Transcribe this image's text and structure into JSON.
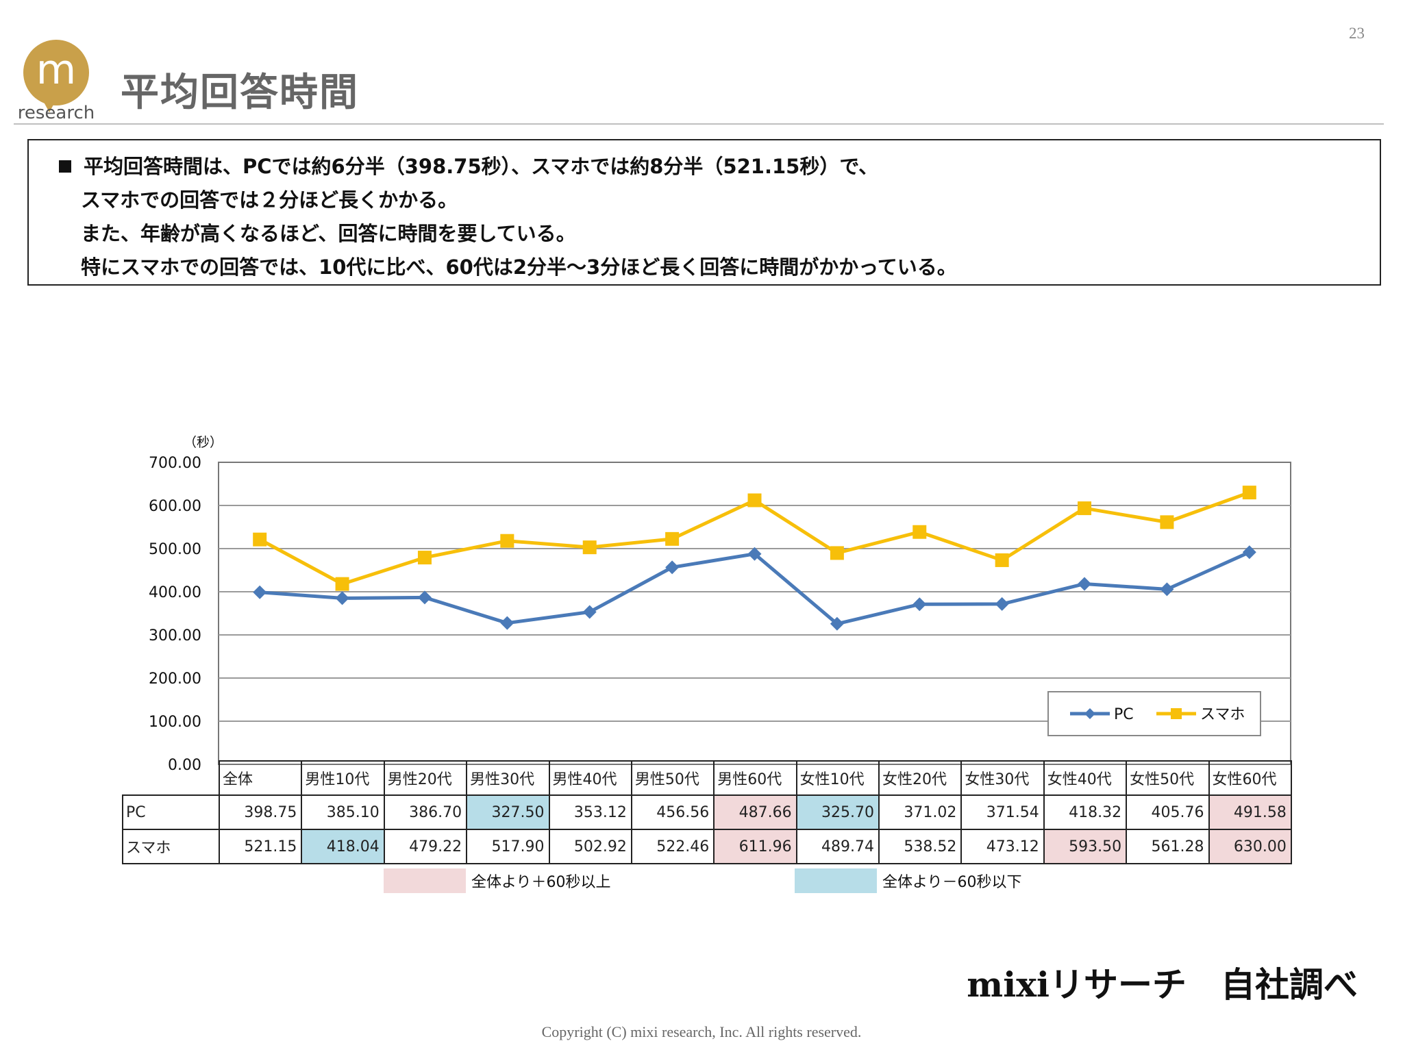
{
  "page_number": "23",
  "logo": {
    "letter": "m",
    "word": "research"
  },
  "title": "平均回答時間",
  "summary": {
    "lines": [
      "平均回答時間は、PCでは約6分半（398.75秒）、スマホでは約8分半（521.15秒）で、",
      "スマホでの回答では２分ほど長くかかる。",
      "また、年齢が高くなるほど、回答に時間を要している。",
      "特にスマホでの回答では、10代に比べ、60代は2分半～3分ほど長く回答に時間がかかっている。"
    ]
  },
  "chart_data": {
    "type": "line",
    "unit_label": "（秒）",
    "categories": [
      "全体",
      "男性10代",
      "男性20代",
      "男性30代",
      "男性40代",
      "男性50代",
      "男性60代",
      "女性10代",
      "女性20代",
      "女性30代",
      "女性40代",
      "女性50代",
      "女性60代"
    ],
    "y_ticks": [
      "700.00",
      "600.00",
      "500.00",
      "400.00",
      "300.00",
      "200.00",
      "100.00",
      "0.00"
    ],
    "ylim": [
      0,
      700
    ],
    "grid": true,
    "legend_placement": "lower-right",
    "series": [
      {
        "name": "PC",
        "color": "#4a7ab8",
        "marker": "diamond",
        "values": [
          398.75,
          385.1,
          386.7,
          327.5,
          353.12,
          456.56,
          487.66,
          325.7,
          371.02,
          371.54,
          418.32,
          405.76,
          491.58
        ],
        "labels": [
          "398.75",
          "385.10",
          "386.70",
          "327.50",
          "353.12",
          "456.56",
          "487.66",
          "325.70",
          "371.02",
          "371.54",
          "418.32",
          "405.76",
          "491.58"
        ],
        "highlights": [
          "",
          "",
          "",
          "lo",
          "",
          "",
          "hi",
          "lo",
          "",
          "",
          "",
          "",
          "hi"
        ]
      },
      {
        "name": "スマホ",
        "color": "#f7bf0a",
        "marker": "square",
        "values": [
          521.15,
          418.04,
          479.22,
          517.9,
          502.92,
          522.46,
          611.96,
          489.74,
          538.52,
          473.12,
          593.5,
          561.28,
          630.0
        ],
        "labels": [
          "521.15",
          "418.04",
          "479.22",
          "517.90",
          "502.92",
          "522.46",
          "611.96",
          "489.74",
          "538.52",
          "473.12",
          "593.50",
          "561.28",
          "630.00"
        ],
        "highlights": [
          "",
          "lo",
          "",
          "",
          "",
          "",
          "hi",
          "",
          "",
          "",
          "hi",
          "",
          "hi"
        ]
      }
    ],
    "notes": [
      {
        "color": "#f2d9da",
        "label": "全体より＋60秒以上"
      },
      {
        "color": "#b7dde8",
        "label": "全体より－60秒以下"
      }
    ]
  },
  "source": "mixiリサーチ　自社調べ",
  "copyright": "Copyright (C) mixi research, Inc. All rights reserved."
}
